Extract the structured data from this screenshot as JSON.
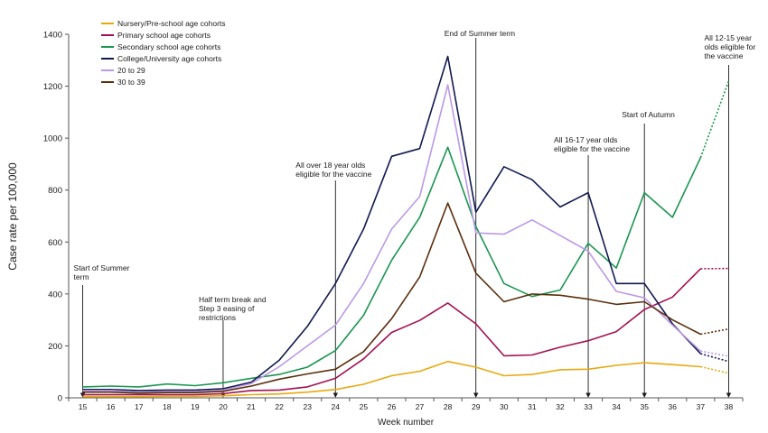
{
  "chart_data": {
    "type": "line",
    "ylabel": "Case rate per 100,000",
    "xlabel": "Week number",
    "ylim": [
      0,
      1400
    ],
    "yticks": [
      0,
      200,
      400,
      600,
      800,
      1000,
      1200,
      1400
    ],
    "x": [
      15,
      16,
      17,
      18,
      19,
      20,
      21,
      22,
      23,
      24,
      25,
      26,
      27,
      28,
      29,
      30,
      31,
      32,
      33,
      34,
      35,
      36,
      37,
      38
    ],
    "legend_position": "top-left",
    "series": [
      {
        "name": "Nursery/Pre-school age cohorts",
        "color": "#e8a90f",
        "values": [
          5,
          5,
          5,
          6,
          6,
          8,
          12,
          15,
          22,
          32,
          52,
          85,
          102,
          140,
          118,
          85,
          90,
          108,
          110,
          125,
          135,
          128,
          120,
          95
        ]
      },
      {
        "name": "Primary school age cohorts",
        "color": "#a3104f",
        "values": [
          12,
          12,
          12,
          12,
          12,
          16,
          28,
          30,
          42,
          75,
          150,
          252,
          298,
          365,
          285,
          162,
          165,
          195,
          220,
          255,
          340,
          388,
          497,
          498
        ]
      },
      {
        "name": "Secondary school age cohorts",
        "color": "#1a9650",
        "values": [
          42,
          45,
          42,
          53,
          47,
          58,
          75,
          90,
          118,
          182,
          318,
          530,
          695,
          965,
          660,
          440,
          390,
          415,
          595,
          500,
          790,
          695,
          925,
          1220
        ]
      },
      {
        "name": "College/University age cohorts",
        "color": "#11194f",
        "values": [
          32,
          32,
          28,
          30,
          30,
          35,
          60,
          145,
          275,
          440,
          650,
          930,
          960,
          1315,
          715,
          890,
          840,
          735,
          790,
          440,
          440,
          285,
          170,
          140
        ]
      },
      {
        "name": "20 to 29",
        "color": "#bb99e6",
        "values": [
          28,
          28,
          22,
          24,
          24,
          30,
          55,
          120,
          200,
          280,
          440,
          650,
          775,
          1205,
          635,
          630,
          685,
          625,
          565,
          410,
          385,
          280,
          180,
          160
        ]
      },
      {
        "name": "30 to 39",
        "color": "#5a2e0c",
        "values": [
          22,
          22,
          18,
          20,
          20,
          25,
          45,
          72,
          92,
          110,
          178,
          305,
          465,
          750,
          480,
          370,
          400,
          395,
          380,
          360,
          370,
          300,
          245,
          265
        ]
      }
    ],
    "dotted_segment": {
      "from_week": 37,
      "to_week": 38
    },
    "annotations": [
      {
        "week": 15,
        "lines": [
          "Start of Summer",
          "term"
        ]
      },
      {
        "week": 20,
        "lines": [
          "Half term break and",
          "Step 3 easing of",
          "restrictions"
        ]
      },
      {
        "week": 24,
        "lines": [
          "All over 18 year olds",
          "eligible for the vaccine"
        ]
      },
      {
        "week": 29,
        "lines": [
          "End of Summer term"
        ]
      },
      {
        "week": 33,
        "lines": [
          "All 16-17 year olds",
          "eligible for the vaccine"
        ]
      },
      {
        "week": 35,
        "lines": [
          "Start of Autumn"
        ]
      },
      {
        "week": 38,
        "lines": [
          "All 12-15 year",
          "olds eligible for",
          "the vaccine"
        ]
      }
    ]
  }
}
